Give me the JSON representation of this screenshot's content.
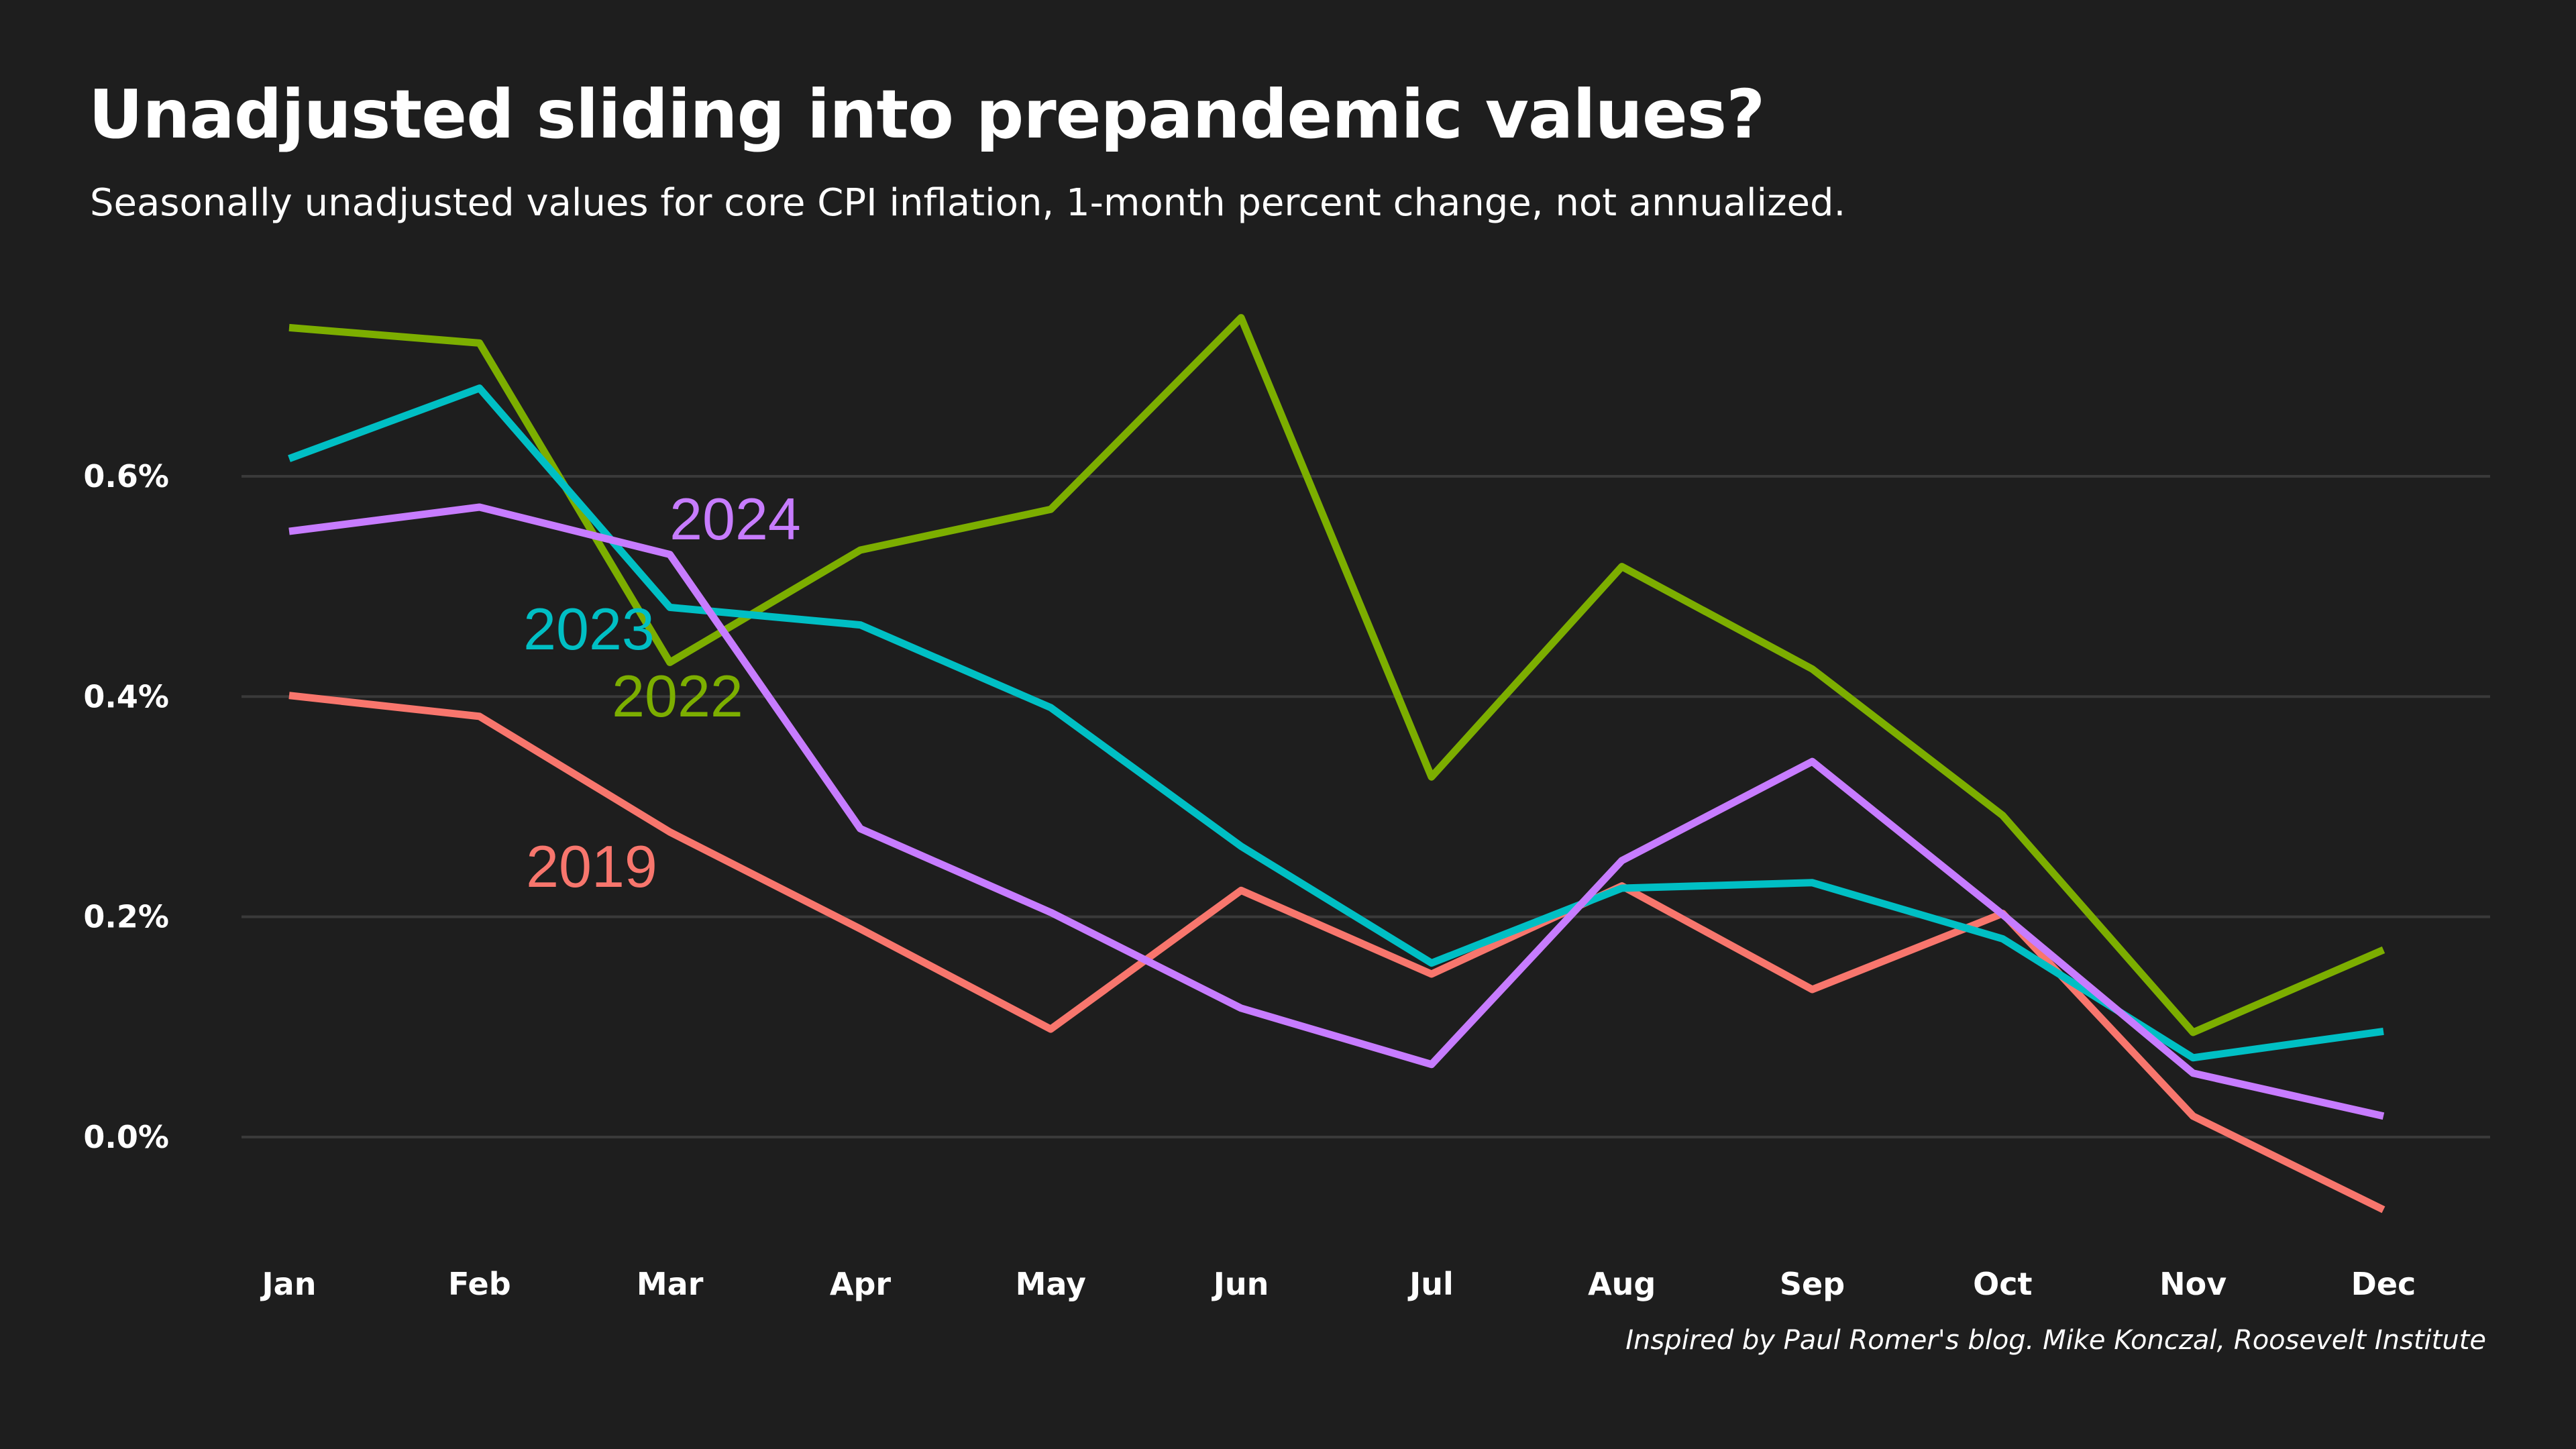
{
  "header": {
    "title": "Unadjusted sliding into prepandemic values?",
    "subtitle": "Seasonally unadjusted values for core CPI inflation, 1-month percent change, not annualized."
  },
  "caption": "Inspired by Paul Romer's blog. Mike Konczal, Roosevelt Institute",
  "chart_data": {
    "type": "line",
    "categories": [
      "Jan",
      "Feb",
      "Mar",
      "Apr",
      "May",
      "Jun",
      "Jul",
      "Aug",
      "Sep",
      "Oct",
      "Nov",
      "Dec"
    ],
    "y_ticks": [
      0.0,
      0.2,
      0.4,
      0.6
    ],
    "y_tick_labels": [
      "0.0%",
      "0.2%",
      "0.4%",
      "0.6%"
    ],
    "ylim": [
      -0.1,
      0.78
    ],
    "grid": true,
    "legend": "direct-labels",
    "series": [
      {
        "name": "2019",
        "color": "#f8766d",
        "values": [
          0.401,
          0.382,
          0.277,
          0.189,
          0.098,
          0.224,
          0.148,
          0.228,
          0.134,
          0.203,
          0.019,
          -0.066
        ]
      },
      {
        "name": "2022",
        "color": "#7cae00",
        "values": [
          0.735,
          0.721,
          0.431,
          0.533,
          0.57,
          0.744,
          0.327,
          0.518,
          0.425,
          0.292,
          0.095,
          0.17
        ]
      },
      {
        "name": "2023",
        "color": "#00bfc4",
        "values": [
          0.616,
          0.68,
          0.481,
          0.465,
          0.39,
          0.264,
          0.158,
          0.226,
          0.231,
          0.18,
          0.072,
          0.096
        ]
      },
      {
        "name": "2024",
        "color": "#c77cff",
        "values": [
          0.55,
          0.572,
          0.529,
          0.28,
          0.204,
          0.117,
          0.066,
          0.251,
          0.341,
          0.202,
          0.058,
          0.019
        ]
      }
    ]
  }
}
